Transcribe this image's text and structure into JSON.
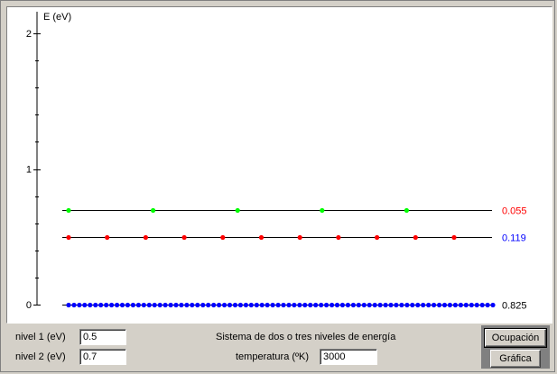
{
  "chart_data": {
    "type": "scatter",
    "ylabel": "E (eV)",
    "ylim": [
      0,
      2
    ],
    "yticks": [
      "0",
      "1",
      "2"
    ],
    "levels": [
      {
        "energy": 0,
        "occupation": "0.825",
        "color": "#0000ff",
        "dots": 80
      },
      {
        "energy": 0.5,
        "occupation": "0.119",
        "color": "#ff0000",
        "dots": 11
      },
      {
        "energy": 0.7,
        "occupation": "0.055",
        "color": "#00ff00",
        "dots": 5
      }
    ]
  },
  "controls": {
    "nivel1_label": "nivel 1 (eV)",
    "nivel1_value": "0.5",
    "nivel2_label": "nivel 2 (eV)",
    "nivel2_value": "0.7",
    "system_title": "Sistema de dos o tres niveles de energía",
    "temp_label": "temperatura (ºK)",
    "temp_value": "3000",
    "ocupacion_label": "Ocupación",
    "grafica_label": "Gráfica"
  },
  "colors": {
    "level_line": "#000000",
    "occ_2": "#ff0000",
    "occ_1": "#0000ff",
    "occ_0": "#000000"
  }
}
